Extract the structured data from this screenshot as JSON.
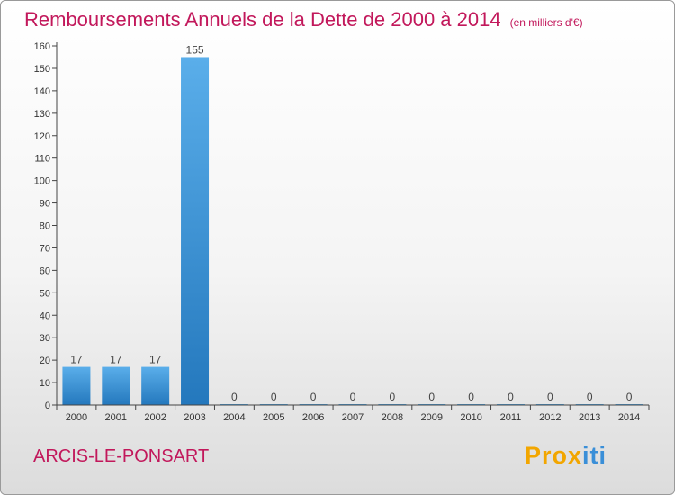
{
  "header": {
    "title": "Remboursements Annuels de la Dette de 2000 à 2014",
    "subtitle": "(en milliers d'€)"
  },
  "footer": {
    "city": "ARCIS-LE-PONSART",
    "logo_part1": "Prox",
    "logo_part2": "iti"
  },
  "colors": {
    "title": "#c2185b",
    "bar_light": "#5aaeea",
    "bar_dark": "#2478bd"
  },
  "chart_data": {
    "type": "bar",
    "categories": [
      "2000",
      "2001",
      "2002",
      "2003",
      "2004",
      "2005",
      "2006",
      "2007",
      "2008",
      "2009",
      "2010",
      "2011",
      "2012",
      "2013",
      "2014"
    ],
    "values": [
      17,
      17,
      17,
      155,
      0,
      0,
      0,
      0,
      0,
      0,
      0,
      0,
      0,
      0,
      0
    ],
    "data_labels": [
      "17",
      "17",
      "17",
      "155",
      "0",
      "0",
      "0",
      "0",
      "0",
      "0",
      "0",
      "0",
      "0",
      "0",
      "0"
    ],
    "ylim": [
      0,
      160
    ],
    "yticks": [
      0,
      10,
      20,
      30,
      40,
      50,
      60,
      70,
      80,
      90,
      100,
      110,
      120,
      130,
      140,
      150,
      160
    ],
    "grid": false
  }
}
